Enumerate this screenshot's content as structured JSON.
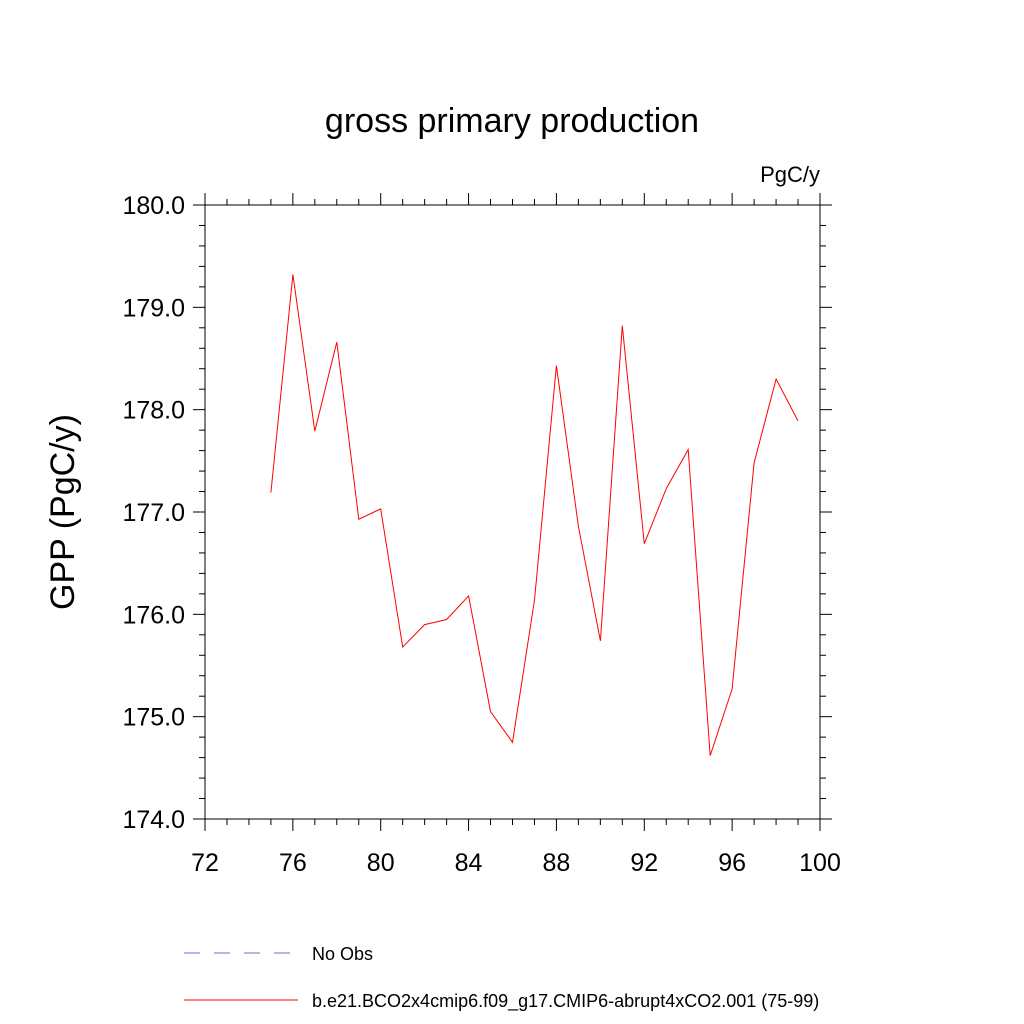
{
  "chart_data": {
    "type": "line",
    "title": "gross primary production",
    "units_label": "PgC/y",
    "xlabel": "",
    "ylabel": "GPP  (PgC/y)",
    "xlim": [
      72,
      100
    ],
    "ylim": [
      174.0,
      180.0
    ],
    "xticks": [
      72,
      76,
      80,
      84,
      88,
      92,
      96,
      100
    ],
    "yticks": [
      174.0,
      175.0,
      176.0,
      177.0,
      178.0,
      179.0,
      180.0
    ],
    "ytick_labels": [
      "174.0",
      "175.0",
      "176.0",
      "177.0",
      "178.0",
      "179.0",
      "180.0"
    ],
    "grid": false,
    "legend_position": "bottom",
    "series": [
      {
        "name": "b.e21.BCO2x4cmip6.f09_g17.CMIP6-abrupt4xCO2.001 (75-99)",
        "color": "#ff0000",
        "style": "solid",
        "x": [
          75,
          76,
          77,
          78,
          79,
          80,
          81,
          82,
          83,
          84,
          85,
          86,
          87,
          88,
          89,
          90,
          91,
          92,
          93,
          94,
          95,
          96,
          97,
          98,
          99
        ],
        "y": [
          177.19,
          179.32,
          177.79,
          178.66,
          176.93,
          177.03,
          175.68,
          175.9,
          175.95,
          176.18,
          175.05,
          174.75,
          176.14,
          178.43,
          176.86,
          175.74,
          178.82,
          176.69,
          177.23,
          177.61,
          174.62,
          175.27,
          177.48,
          178.3,
          177.89
        ]
      }
    ],
    "legend": [
      {
        "label": "No Obs",
        "color": "#7b68c8",
        "style": "dashed"
      },
      {
        "label": "b.e21.BCO2x4cmip6.f09_g17.CMIP6-abrupt4xCO2.001 (75-99)",
        "color": "#ff0000",
        "style": "solid"
      }
    ]
  }
}
